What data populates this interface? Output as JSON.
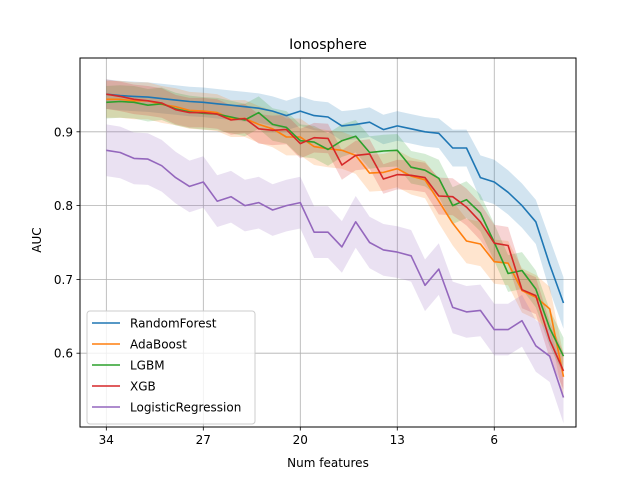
{
  "chart_data": {
    "type": "line",
    "title": "Ionosphere",
    "xlabel": "Num features",
    "ylabel": "AUC",
    "x_inverted": true,
    "xlim": [
      35.9,
      0.1
    ],
    "ylim": [
      0.5,
      1.0
    ],
    "x_ticks": [
      34,
      27,
      20,
      13,
      6
    ],
    "x_tick_labels": [
      "34",
      "27",
      "20",
      "13",
      "6"
    ],
    "y_ticks": [
      0.6,
      0.7,
      0.8,
      0.9
    ],
    "y_tick_labels": [
      "0.6",
      "0.7",
      "0.8",
      "0.9"
    ],
    "grid": true,
    "legend_position": "lower-left",
    "x": [
      34,
      33,
      32,
      31,
      30,
      29,
      28,
      27,
      26,
      25,
      24,
      23,
      22,
      21,
      20,
      19,
      18,
      17,
      16,
      15,
      14,
      13,
      12,
      11,
      10,
      9,
      8,
      7,
      6,
      5,
      4,
      3,
      2,
      1
    ],
    "series": [
      {
        "name": "RandomForest",
        "color": "#1f77b4",
        "values": [
          0.951,
          0.949,
          0.948,
          0.947,
          0.945,
          0.943,
          0.941,
          0.94,
          0.938,
          0.936,
          0.934,
          0.932,
          0.928,
          0.922,
          0.928,
          0.922,
          0.92,
          0.908,
          0.91,
          0.913,
          0.903,
          0.908,
          0.904,
          0.9,
          0.898,
          0.878,
          0.878,
          0.838,
          0.832,
          0.818,
          0.8,
          0.778,
          0.72,
          0.668
        ],
        "band": [
          0.02,
          0.02,
          0.02,
          0.02,
          0.02,
          0.02,
          0.02,
          0.02,
          0.02,
          0.02,
          0.02,
          0.02,
          0.02,
          0.02,
          0.02,
          0.02,
          0.02,
          0.02,
          0.02,
          0.02,
          0.02,
          0.02,
          0.02,
          0.02,
          0.02,
          0.025,
          0.025,
          0.03,
          0.03,
          0.03,
          0.03,
          0.03,
          0.035,
          0.035
        ]
      },
      {
        "name": "AdaBoost",
        "color": "#ff7f0e",
        "values": [
          0.944,
          0.944,
          0.942,
          0.942,
          0.937,
          0.934,
          0.929,
          0.928,
          0.926,
          0.918,
          0.918,
          0.91,
          0.904,
          0.893,
          0.893,
          0.88,
          0.877,
          0.875,
          0.868,
          0.844,
          0.845,
          0.85,
          0.84,
          0.835,
          0.806,
          0.776,
          0.752,
          0.748,
          0.724,
          0.722,
          0.685,
          0.676,
          0.66,
          0.568
        ],
        "band": [
          0.025,
          0.025,
          0.025,
          0.025,
          0.025,
          0.025,
          0.025,
          0.025,
          0.025,
          0.025,
          0.025,
          0.025,
          0.025,
          0.025,
          0.025,
          0.025,
          0.025,
          0.025,
          0.025,
          0.025,
          0.025,
          0.025,
          0.025,
          0.025,
          0.03,
          0.03,
          0.03,
          0.03,
          0.03,
          0.03,
          0.03,
          0.03,
          0.03,
          0.03
        ]
      },
      {
        "name": "LGBM",
        "color": "#2ca02c",
        "values": [
          0.94,
          0.941,
          0.94,
          0.936,
          0.938,
          0.931,
          0.927,
          0.925,
          0.924,
          0.92,
          0.916,
          0.926,
          0.91,
          0.906,
          0.888,
          0.886,
          0.876,
          0.888,
          0.894,
          0.872,
          0.874,
          0.875,
          0.852,
          0.848,
          0.837,
          0.8,
          0.808,
          0.79,
          0.75,
          0.708,
          0.712,
          0.687,
          0.634,
          0.596
        ],
        "band": [
          0.022,
          0.022,
          0.022,
          0.022,
          0.022,
          0.022,
          0.022,
          0.022,
          0.022,
          0.022,
          0.022,
          0.022,
          0.022,
          0.022,
          0.022,
          0.022,
          0.022,
          0.022,
          0.022,
          0.022,
          0.022,
          0.022,
          0.022,
          0.022,
          0.025,
          0.025,
          0.025,
          0.025,
          0.025,
          0.025,
          0.025,
          0.025,
          0.025,
          0.025
        ]
      },
      {
        "name": "XGB",
        "color": "#d62728",
        "values": [
          0.951,
          0.948,
          0.944,
          0.942,
          0.939,
          0.93,
          0.926,
          0.926,
          0.924,
          0.916,
          0.918,
          0.904,
          0.902,
          0.903,
          0.884,
          0.892,
          0.891,
          0.855,
          0.868,
          0.87,
          0.836,
          0.842,
          0.841,
          0.838,
          0.813,
          0.812,
          0.798,
          0.778,
          0.749,
          0.746,
          0.686,
          0.678,
          0.618,
          0.576
        ],
        "band": [
          0.02,
          0.02,
          0.02,
          0.02,
          0.02,
          0.02,
          0.02,
          0.02,
          0.02,
          0.02,
          0.02,
          0.02,
          0.02,
          0.02,
          0.02,
          0.02,
          0.02,
          0.02,
          0.02,
          0.02,
          0.02,
          0.02,
          0.02,
          0.02,
          0.025,
          0.025,
          0.025,
          0.025,
          0.025,
          0.025,
          0.025,
          0.025,
          0.025,
          0.025
        ]
      },
      {
        "name": "LogisticRegression",
        "color": "#9467bd",
        "values": [
          0.875,
          0.872,
          0.864,
          0.863,
          0.854,
          0.838,
          0.826,
          0.832,
          0.806,
          0.812,
          0.8,
          0.804,
          0.794,
          0.8,
          0.804,
          0.764,
          0.764,
          0.744,
          0.778,
          0.75,
          0.74,
          0.737,
          0.732,
          0.692,
          0.714,
          0.662,
          0.656,
          0.658,
          0.632,
          0.632,
          0.644,
          0.61,
          0.596,
          0.54
        ],
        "band": [
          0.035,
          0.035,
          0.035,
          0.035,
          0.035,
          0.035,
          0.035,
          0.035,
          0.035,
          0.035,
          0.035,
          0.035,
          0.035,
          0.035,
          0.035,
          0.035,
          0.035,
          0.035,
          0.035,
          0.035,
          0.035,
          0.035,
          0.035,
          0.035,
          0.035,
          0.035,
          0.035,
          0.035,
          0.035,
          0.035,
          0.035,
          0.035,
          0.035,
          0.035
        ]
      }
    ]
  }
}
